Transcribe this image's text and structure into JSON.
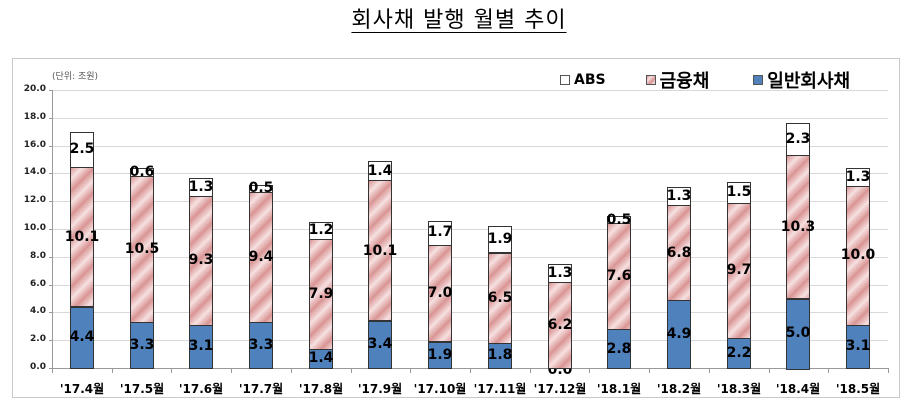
{
  "page": {
    "title": "회사채 발행 월별 추이"
  },
  "colors": {
    "general_corporate": "#4f81bd",
    "financial": "#d99594",
    "abs": "#ffffff",
    "gridline": "#d9d9d9"
  },
  "chart_data": {
    "type": "bar",
    "stacked": true,
    "title": "회사채 발행 월별 추이",
    "unit_label": "(단위: 조원)",
    "xlabel": "",
    "ylabel": "",
    "ylim": [
      0,
      20
    ],
    "yticks": [
      "0.0",
      "2.0",
      "4.0",
      "6.0",
      "8.0",
      "10.0",
      "12.0",
      "14.0",
      "16.0",
      "18.0",
      "20.0"
    ],
    "grid": true,
    "legend_position": "top-right",
    "categories": [
      "'17.4월",
      "'17.5월",
      "'17.6월",
      "'17.7월",
      "'17.8월",
      "'17.9월",
      "'17.10월",
      "'17.11월",
      "'17.12월",
      "'18.1월",
      "'18.2월",
      "'18.3월",
      "'18.4월",
      "'18.5월"
    ],
    "series": [
      {
        "name": "일반회사채",
        "values": [
          4.4,
          3.3,
          3.1,
          3.3,
          1.4,
          3.4,
          1.9,
          1.8,
          0.0,
          2.8,
          4.9,
          2.2,
          5.0,
          3.1
        ]
      },
      {
        "name": "금융채",
        "values": [
          10.1,
          10.5,
          9.3,
          9.4,
          7.9,
          10.1,
          7.0,
          6.5,
          6.2,
          7.6,
          6.8,
          9.7,
          10.3,
          10.0
        ]
      },
      {
        "name": "ABS",
        "values": [
          2.5,
          0.6,
          1.3,
          0.5,
          1.2,
          1.4,
          1.7,
          1.9,
          1.3,
          0.5,
          1.3,
          1.5,
          2.3,
          1.3
        ]
      }
    ]
  },
  "legend": {
    "items": [
      {
        "label": "ABS",
        "key": "abs"
      },
      {
        "label": "금융채",
        "key": "fin"
      },
      {
        "label": "일반회사채",
        "key": "gen"
      }
    ]
  }
}
